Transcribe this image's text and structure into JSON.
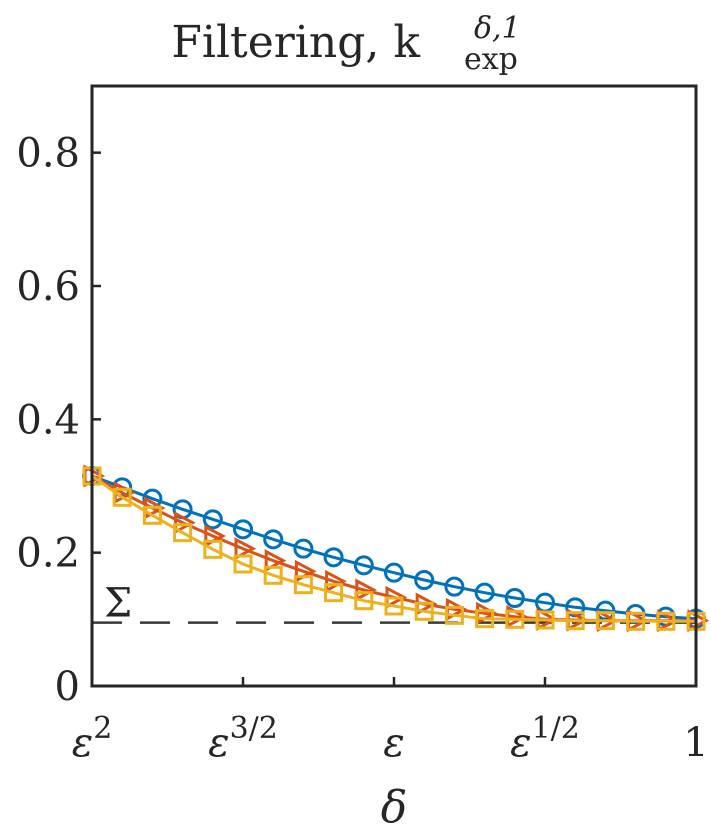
{
  "chart_data": {
    "type": "line",
    "title": "Filtering, k",
    "title_sub": "exp",
    "title_sup": "δ,1",
    "xlabel": "δ",
    "ylabel": "",
    "xlim": [
      0,
      4
    ],
    "ylim": [
      0,
      0.9
    ],
    "x_ticks": [
      0,
      1,
      2,
      3,
      4
    ],
    "x_tick_labels": [
      {
        "base": "ε",
        "sup": "2"
      },
      {
        "base": "ε",
        "sup": "3/2"
      },
      {
        "base": "ε",
        "sup": ""
      },
      {
        "base": "ε",
        "sup": "1/2"
      },
      {
        "base": "1",
        "sup": ""
      }
    ],
    "y_ticks": [
      0,
      0.2,
      0.4,
      0.6,
      0.8
    ],
    "y_tick_labels": [
      "0",
      "0.2",
      "0.4",
      "0.6",
      "0.8"
    ],
    "grid": false,
    "x": [
      0,
      0.2,
      0.4,
      0.6,
      0.8,
      1.0,
      1.2,
      1.4,
      1.6,
      1.8,
      2.0,
      2.2,
      2.4,
      2.6,
      2.8,
      3.0,
      3.2,
      3.4,
      3.6,
      3.8,
      4.0
    ],
    "series": [
      {
        "marker": "circle",
        "color": "#0072BD",
        "values": [
          0.315,
          0.298,
          0.281,
          0.265,
          0.25,
          0.235,
          0.22,
          0.206,
          0.193,
          0.181,
          0.17,
          0.159,
          0.149,
          0.14,
          0.132,
          0.125,
          0.118,
          0.113,
          0.108,
          0.104,
          0.101
        ]
      },
      {
        "marker": "triangle-right",
        "color": "#D95319",
        "values": [
          0.315,
          0.29,
          0.267,
          0.245,
          0.225,
          0.206,
          0.188,
          0.172,
          0.157,
          0.144,
          0.133,
          0.123,
          0.115,
          0.109,
          0.104,
          0.1,
          0.099,
          0.098,
          0.098,
          0.098,
          0.098
        ]
      },
      {
        "marker": "square",
        "color": "#EDB120",
        "values": [
          0.315,
          0.283,
          0.256,
          0.23,
          0.205,
          0.183,
          0.166,
          0.152,
          0.14,
          0.128,
          0.12,
          0.112,
          0.106,
          0.101,
          0.1,
          0.099,
          0.098,
          0.098,
          0.097,
          0.097,
          0.097
        ]
      }
    ],
    "reference_line": {
      "label": "Σ",
      "y": 0.095,
      "style": "dashed",
      "color": "#3a3a3a"
    }
  }
}
